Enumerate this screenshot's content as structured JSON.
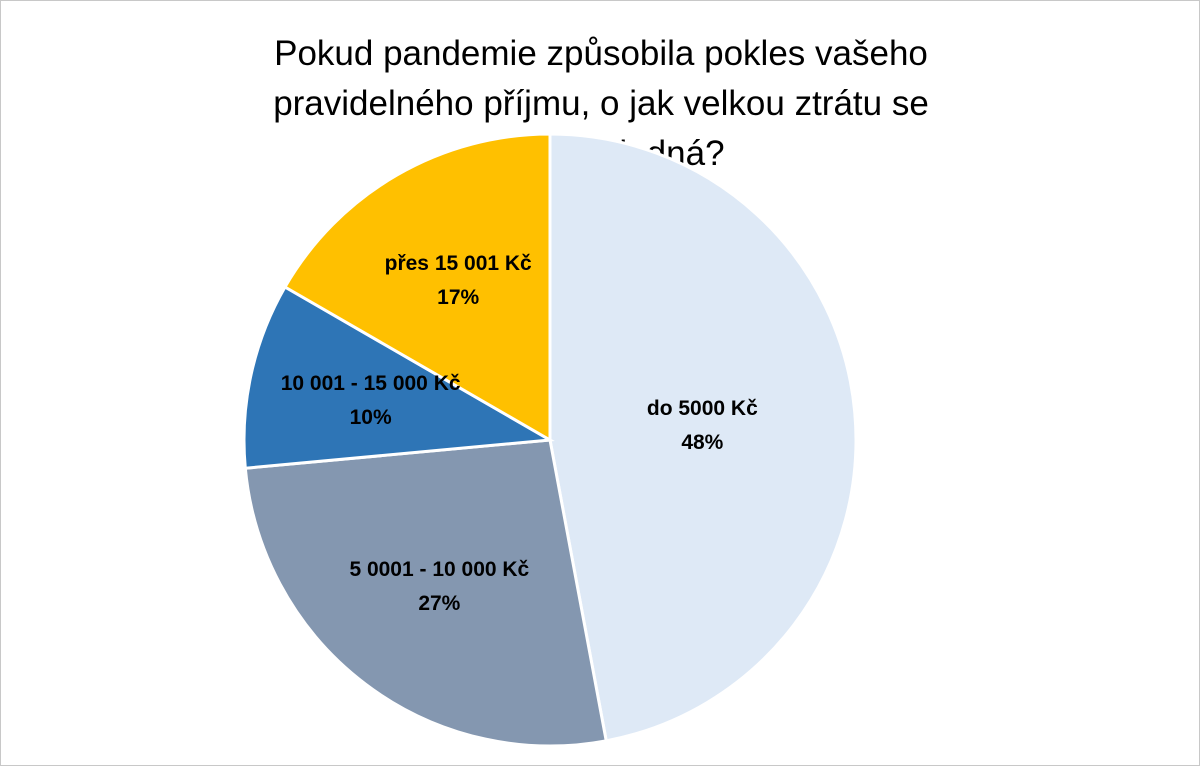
{
  "chart_data": {
    "type": "pie",
    "title": "Pokud pandemie způsobila pokles vašeho pravidelného příjmu, o jak velkou ztrátu se měsíčně jedná?",
    "categories": [
      "do 5000 Kč",
      "5 0001 - 10 000 Kč",
      "10 001 - 15 000 Kč",
      "přes 15 001 Kč"
    ],
    "values": [
      48,
      27,
      10,
      17
    ],
    "value_labels": [
      "48%",
      "27%",
      "10%",
      "17%"
    ],
    "colors": [
      "#dee9f6",
      "#8497b0",
      "#2e75b6",
      "#ffc000"
    ]
  }
}
